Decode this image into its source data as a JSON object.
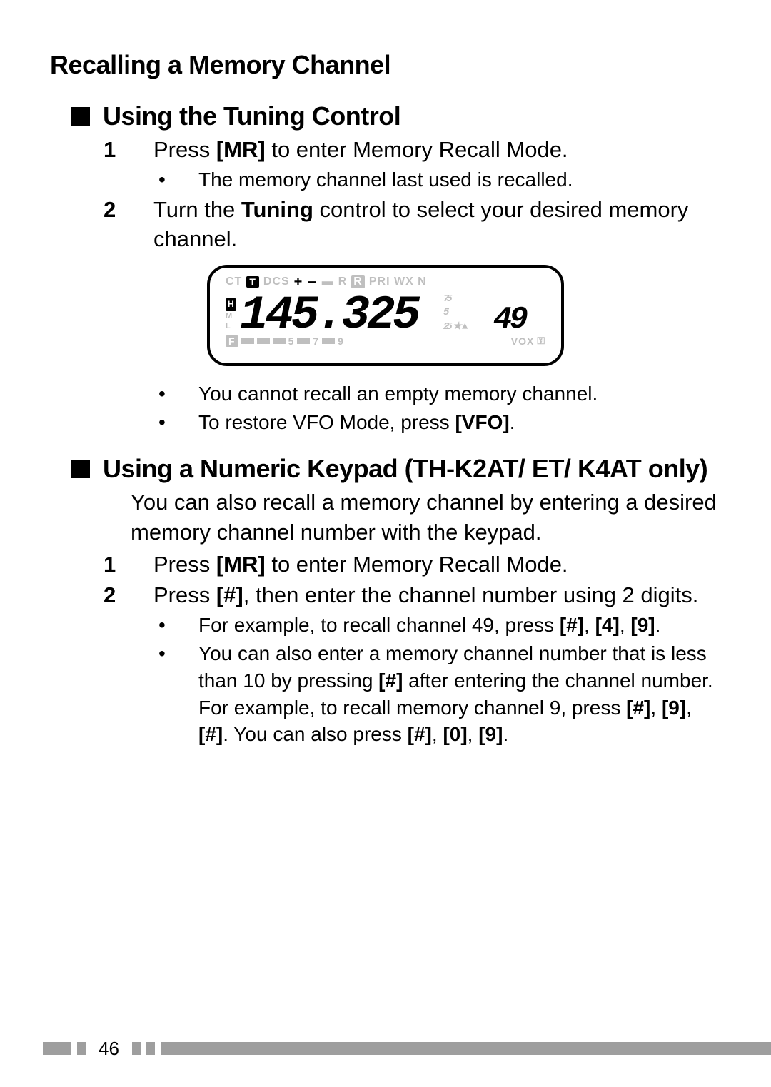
{
  "title": "Recalling a Memory Channel",
  "section1": {
    "title": "Using the Tuning Control",
    "steps": [
      {
        "num": "1",
        "pre": "Press ",
        "bold": "[MR]",
        "post": " to enter Memory Recall Mode.",
        "bullets": [
          {
            "text": "The memory channel last used is recalled."
          }
        ]
      },
      {
        "num": "2",
        "pre": "Turn the ",
        "bold": "Tuning",
        "post": " control to select your desired memory channel.",
        "bullets": [
          {
            "text": "You cannot recall an empty memory channel."
          },
          {
            "pre": "To restore VFO Mode, press ",
            "bold": "[VFO]",
            "post": "."
          }
        ]
      }
    ]
  },
  "lcd": {
    "top_faded": [
      "CT",
      "DCS",
      "PRI WX N"
    ],
    "top_t": "T",
    "top_plus": "+",
    "top_minus": "–",
    "top_r": "R",
    "side_h": "H",
    "side_m": "M",
    "side_l": "L",
    "freq_main": "145.325",
    "freq_small": "49",
    "right_nums": [
      "75",
      "5",
      "25"
    ],
    "bottom_f": "F",
    "bottom_digits": [
      "5",
      "7",
      "9"
    ],
    "bottom_vox": "VOX",
    "segment_color": "#000000",
    "faded_color": "#bfbfbf"
  },
  "section2": {
    "title": "Using a Numeric Keypad (TH-K2AT/ ET/ K4AT only)",
    "intro": "You can also recall a memory channel by entering a desired memory channel number with the keypad.",
    "steps": [
      {
        "num": "1",
        "pre": "Press ",
        "bold": "[MR]",
        "post": " to enter Memory Recall Mode."
      },
      {
        "num": "2",
        "pre": "Press ",
        "bold": "[#]",
        "post": ", then enter the channel number using 2 digits.",
        "bullets": [
          {
            "parts": [
              {
                "t": "For example, to recall channel 49, press "
              },
              {
                "b": "[#]"
              },
              {
                "t": ", "
              },
              {
                "b": "[4]"
              },
              {
                "t": ", "
              },
              {
                "b": "[9]"
              },
              {
                "t": "."
              }
            ]
          },
          {
            "parts": [
              {
                "t": "You can also enter a memory channel number that is less than 10 by pressing "
              },
              {
                "b": "[#]"
              },
              {
                "t": " after entering the channel number.  For example, to recall memory channel 9, press "
              },
              {
                "b": "[#]"
              },
              {
                "t": ", "
              },
              {
                "b": "[9]"
              },
              {
                "t": ", "
              },
              {
                "b": "[#]"
              },
              {
                "t": ".  You can also press "
              },
              {
                "b": "[#]"
              },
              {
                "t": ", "
              },
              {
                "b": "[0]"
              },
              {
                "t": ", "
              },
              {
                "b": "[9]"
              },
              {
                "t": "."
              }
            ]
          }
        ]
      }
    ]
  },
  "page_number": "46"
}
